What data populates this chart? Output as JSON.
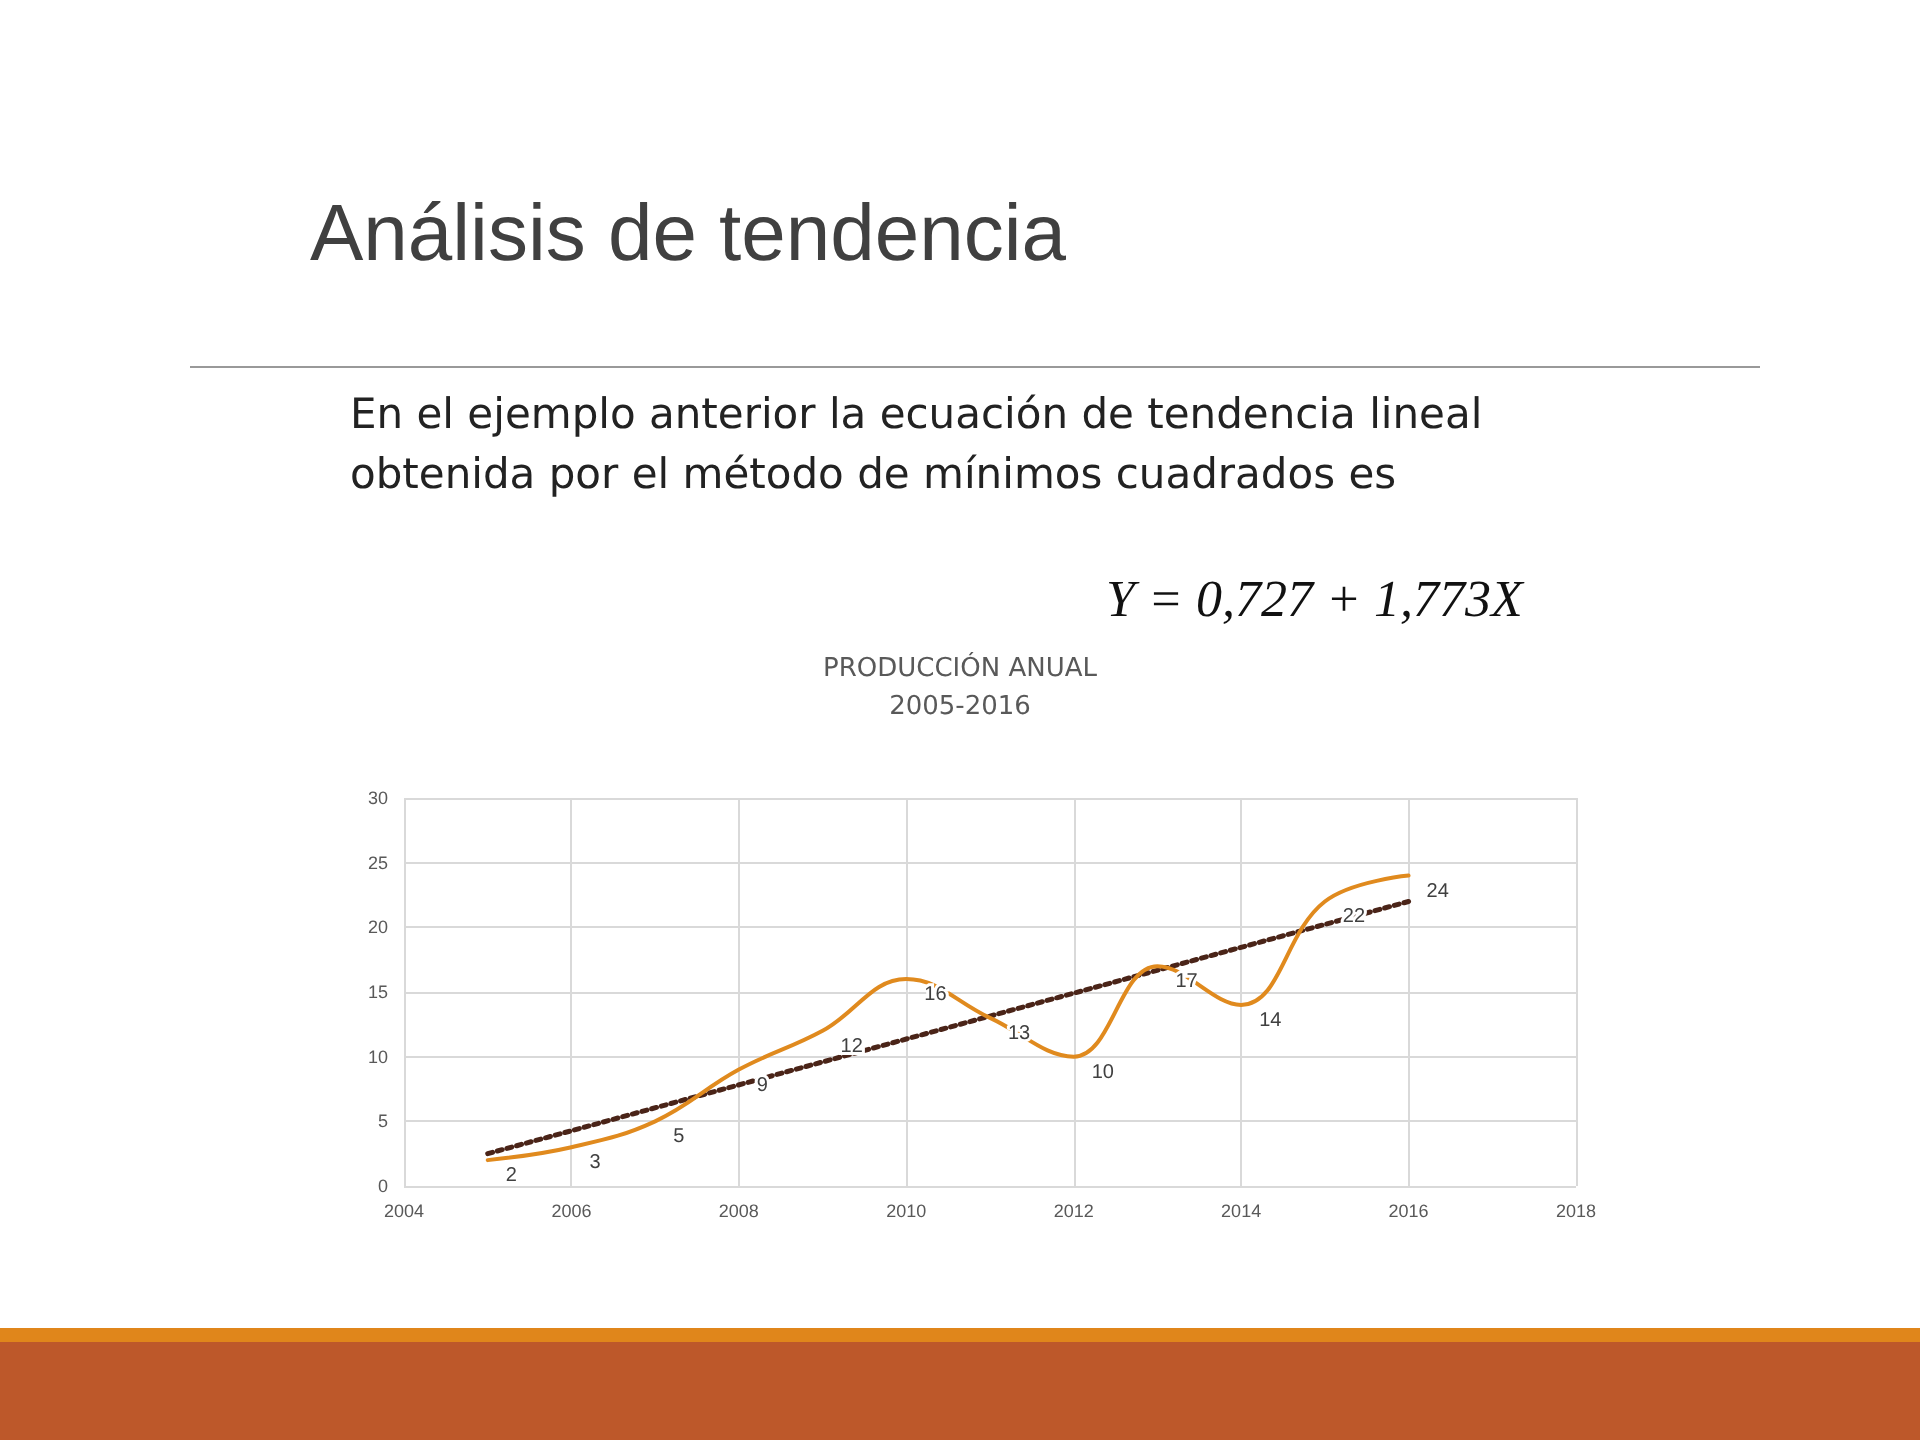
{
  "chart_data": {
    "type": "line",
    "title": "PRODUCCIÓN ANUAL\n2005-2016",
    "annotations": [
      "Análisis de tendencia",
      "En el ejemplo anterior la ecuación de tendencia lineal\nobtenida por el método de mínimos cuadrados es",
      "Y = 0,727 + 1,773X"
    ],
    "x": [
      2005,
      2006,
      2007,
      2008,
      2009,
      2010,
      2011,
      2012,
      2013,
      2014,
      2015,
      2016
    ],
    "series": [
      {
        "color": "#e08a1e",
        "values": [
          2,
          3,
          5,
          9,
          12,
          16,
          13,
          10,
          17,
          14,
          22,
          24
        ],
        "value_labels": [
          "2",
          "3",
          "5",
          "9",
          "12",
          "16",
          "13",
          "10",
          "17",
          "14",
          "22",
          "24"
        ]
      },
      {
        "type": "line",
        "color": "#4a2418",
        "x": [
          2005,
          2016
        ],
        "values": [
          2.5,
          22.0
        ],
        "line_style": "dotted"
      }
    ],
    "xlim": [
      2004,
      2018
    ],
    "xticks": [
      2004,
      2006,
      2008,
      2010,
      2012,
      2014,
      2016,
      2018
    ],
    "ylim": [
      0,
      30
    ],
    "yticks": [
      0,
      5,
      10,
      15,
      20,
      25,
      30
    ],
    "grid": true,
    "marker": "none"
  }
}
